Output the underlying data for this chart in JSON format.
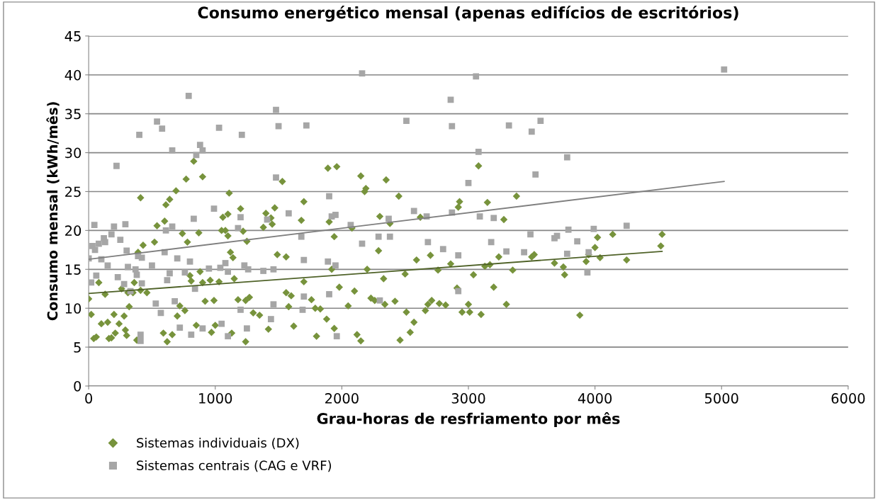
{
  "chart_data": {
    "type": "scatter",
    "title": "Consumo energético mensal (apenas edifícios de escritórios)",
    "xlabel": "Grau-horas de resfriamento por mês",
    "ylabel": "Consumo mensal (kWh/mês)",
    "xlim": [
      0,
      6000
    ],
    "xticks": [
      0,
      1000,
      2000,
      3000,
      4000,
      5000,
      6000
    ],
    "ylim": [
      0,
      45
    ],
    "yticks": [
      0,
      5,
      10,
      15,
      20,
      25,
      30,
      35,
      40,
      45
    ],
    "grid": "y",
    "legend": "bottom",
    "series": [
      {
        "name": "Sistemas individuais (DX)",
        "marker": "diamond",
        "color": "#77933c",
        "x": [
          0,
          20,
          40,
          60,
          80,
          100,
          130,
          150,
          160,
          180,
          200,
          210,
          240,
          260,
          280,
          290,
          300,
          310,
          320,
          350,
          360,
          380,
          390,
          410,
          410,
          430,
          460,
          520,
          540,
          590,
          600,
          610,
          620,
          640,
          660,
          690,
          700,
          720,
          740,
          760,
          770,
          780,
          800,
          810,
          830,
          850,
          870,
          880,
          900,
          900,
          920,
          960,
          970,
          990,
          1000,
          1030,
          1050,
          1060,
          1080,
          1100,
          1100,
          1110,
          1120,
          1130,
          1140,
          1150,
          1180,
          1200,
          1220,
          1240,
          1240,
          1250,
          1270,
          1300,
          1350,
          1380,
          1400,
          1420,
          1440,
          1450,
          1470,
          1490,
          1530,
          1560,
          1560,
          1580,
          1600,
          1620,
          1680,
          1700,
          1700,
          1760,
          1790,
          1800,
          1830,
          1880,
          1890,
          1900,
          1920,
          1940,
          1940,
          1960,
          1980,
          2050,
          2080,
          2100,
          2120,
          2150,
          2150,
          2180,
          2190,
          2200,
          2230,
          2260,
          2290,
          2300,
          2330,
          2340,
          2350,
          2380,
          2420,
          2450,
          2460,
          2500,
          2510,
          2540,
          2570,
          2590,
          2620,
          2660,
          2680,
          2700,
          2710,
          2760,
          2770,
          2820,
          2860,
          2910,
          2920,
          2930,
          2950,
          3000,
          3010,
          3040,
          3080,
          3100,
          3130,
          3150,
          3170,
          3200,
          3240,
          3280,
          3300,
          3350,
          3380,
          3500,
          3520,
          3680,
          3750,
          3760,
          3880,
          3930,
          3950,
          4000,
          4020,
          4040,
          4140,
          4250,
          4520,
          4530
        ],
        "values": [
          11.2,
          9.2,
          6.1,
          6.3,
          13.3,
          8,
          11.8,
          8.2,
          6.1,
          6.2,
          9.2,
          6.8,
          8,
          12.5,
          9,
          7.2,
          6.5,
          12,
          10.2,
          12,
          13.3,
          5.9,
          17.2,
          24.2,
          12.3,
          18.1,
          12,
          18.5,
          20.6,
          6.8,
          21.2,
          23.3,
          5.7,
          24,
          6.6,
          25.1,
          9,
          10.3,
          19.6,
          9.7,
          26.6,
          18.5,
          14.2,
          13.5,
          28.9,
          7.8,
          19.7,
          14.7,
          26.9,
          13.3,
          10.9,
          13.6,
          6.9,
          11,
          7.8,
          13.4,
          20,
          21.7,
          20,
          22.1,
          19.3,
          24.8,
          17.2,
          6.8,
          16.5,
          13.8,
          11.1,
          22.8,
          19.9,
          11,
          5.7,
          18.6,
          11.4,
          9.4,
          9.1,
          20.4,
          22.2,
          7.3,
          21.6,
          20.8,
          22.9,
          16.9,
          26.3,
          12,
          16.6,
          10.2,
          11.6,
          7.7,
          21.3,
          23.7,
          13.4,
          11.1,
          10,
          6.4,
          9.9,
          8.6,
          28,
          21.1,
          15,
          7.4,
          19.2,
          28.2,
          12.7,
          10.3,
          20.3,
          12.2,
          6.6,
          5.8,
          27,
          25,
          25.4,
          15,
          11.3,
          11,
          17.4,
          21.8,
          13.8,
          10.5,
          26.5,
          20.9,
          10.9,
          24.4,
          5.9,
          14.4,
          9.5,
          6.9,
          8.2,
          16.2,
          21.7,
          9.7,
          10.5,
          16.8,
          11,
          14.9,
          10.6,
          10.4,
          15.7,
          12.6,
          23,
          23.7,
          9.5,
          10.5,
          9.5,
          14.3,
          28.3,
          9.2,
          15.4,
          23.6,
          15.6,
          12.7,
          16.6,
          21.4,
          10.5,
          14.9,
          24.4,
          16.6,
          16.9,
          15.8,
          15.3,
          14.3,
          9.1,
          16,
          16.9,
          17.8,
          19.1,
          16.5,
          19.5,
          16.2,
          18,
          19.5
        ]
      },
      {
        "name": "Sistemas centrais (CAG e VRF)",
        "marker": "square",
        "color": "#a6a6a6",
        "x": [
          0,
          20,
          30,
          45,
          50,
          60,
          80,
          100,
          120,
          130,
          150,
          180,
          200,
          220,
          230,
          250,
          280,
          290,
          300,
          310,
          330,
          370,
          380,
          400,
          420,
          410,
          410,
          390,
          420,
          500,
          530,
          540,
          570,
          580,
          600,
          610,
          620,
          640,
          660,
          660,
          680,
          700,
          720,
          760,
          790,
          800,
          810,
          830,
          840,
          850,
          880,
          900,
          900,
          950,
          990,
          1030,
          1040,
          1050,
          1080,
          1100,
          1100,
          1180,
          1200,
          1200,
          1210,
          1230,
          1250,
          1260,
          1380,
          1410,
          1440,
          1460,
          1460,
          1480,
          1480,
          1500,
          1580,
          1680,
          1690,
          1700,
          1700,
          1720,
          1890,
          1900,
          1920,
          1950,
          1950,
          1960,
          1900,
          2070,
          2160,
          2160,
          2290,
          2300,
          2370,
          2380,
          2510,
          2570,
          2670,
          2680,
          2800,
          2860,
          2870,
          2870,
          2920,
          2920,
          3000,
          3060,
          3080,
          3090,
          3180,
          3200,
          3300,
          3320,
          3440,
          3490,
          3500,
          3530,
          3570,
          3680,
          3700,
          3780,
          3790,
          3780,
          3860,
          3940,
          3950,
          3990,
          4250,
          5020
        ],
        "values": [
          16.4,
          13.3,
          18,
          20.7,
          17.5,
          14.2,
          18.3,
          16.3,
          19,
          18.5,
          15.5,
          19.5,
          20.5,
          28.3,
          14,
          18.8,
          13.1,
          20.8,
          17.4,
          15.3,
          12.2,
          15,
          14.3,
          32.3,
          13.2,
          6.6,
          5.8,
          16.7,
          16.5,
          15.5,
          10.6,
          34,
          9.4,
          33.1,
          17.2,
          20,
          13.6,
          14.5,
          20.5,
          30.3,
          10.9,
          16.4,
          7.5,
          14.6,
          37.3,
          16,
          6.6,
          21.5,
          12.5,
          29.7,
          31,
          30.3,
          7.4,
          15.1,
          22.8,
          33.2,
          15.2,
          8,
          15.8,
          6.4,
          14.7,
          20.3,
          21.7,
          9.8,
          32.3,
          15.5,
          7.4,
          15,
          14.8,
          21.4,
          8.6,
          10.5,
          15,
          35.5,
          26.8,
          33.4,
          22.2,
          19.2,
          9.8,
          16.2,
          11.5,
          33.5,
          16,
          24.4,
          21.8,
          22,
          15.5,
          6.4,
          11.8,
          20.7,
          18.3,
          40.2,
          19.2,
          11,
          21.5,
          19.2,
          34.1,
          22.5,
          21.8,
          18.5,
          17.6,
          36.8,
          22.3,
          33.4,
          12.2,
          16.8,
          26.1,
          39.8,
          30.1,
          21.8,
          18.5,
          21.6,
          17.3,
          33.5,
          17.2,
          19.5,
          32.7,
          27.2,
          34.1,
          19,
          19.3,
          29.4,
          20.1,
          17,
          18.6,
          14.6,
          17.2,
          20.2,
          20.6,
          40.7
        ]
      },
      {
        "type": "line",
        "marker": "none",
        "color": "#4f6228",
        "x": [
          0,
          4530
        ],
        "values": [
          11.9,
          17.3
        ]
      },
      {
        "type": "line",
        "marker": "none",
        "color": "#7f7f7f",
        "x": [
          0,
          5020
        ],
        "values": [
          16.3,
          26.3
        ]
      }
    ]
  }
}
